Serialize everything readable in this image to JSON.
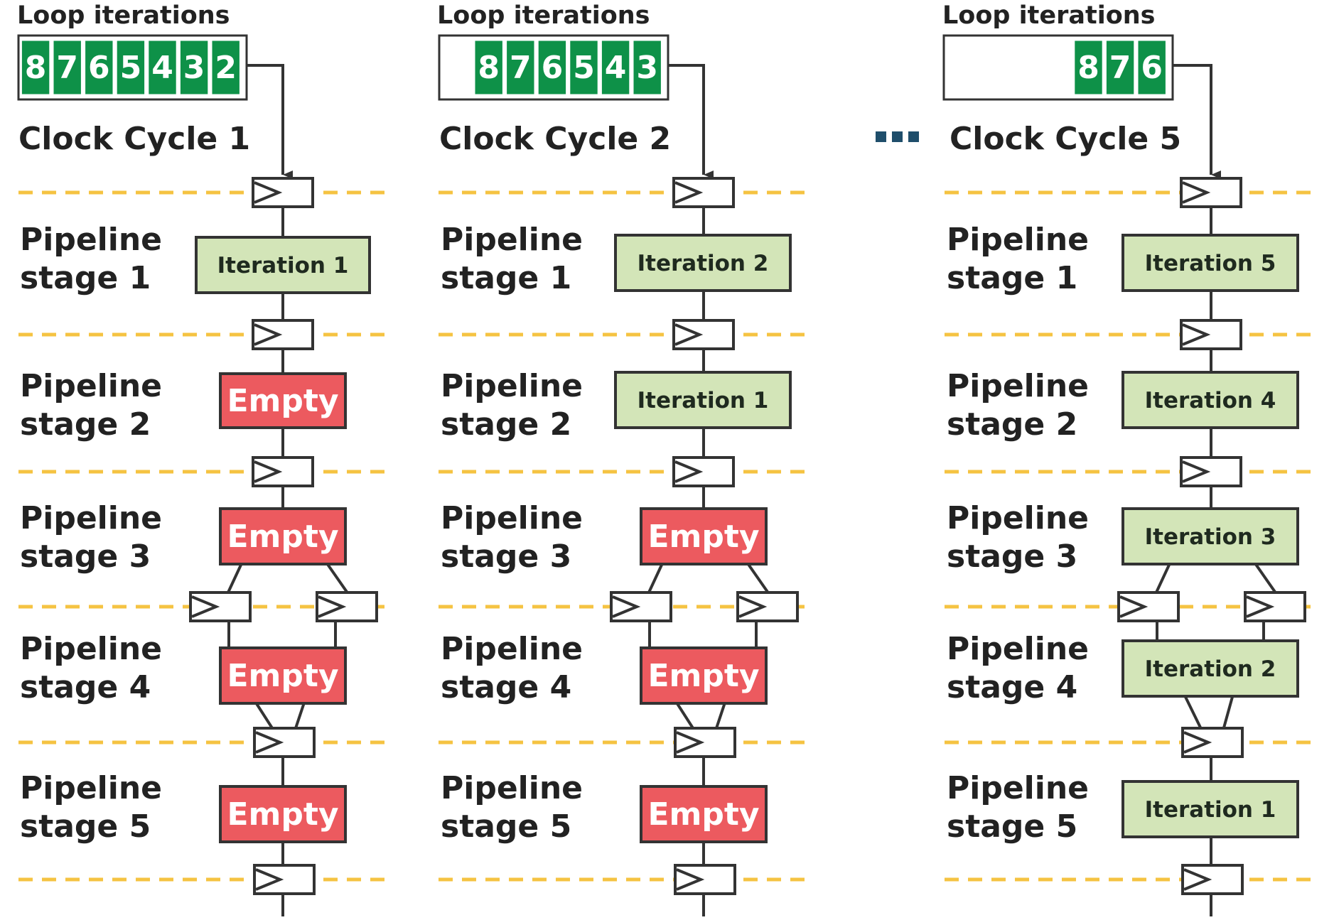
{
  "columns": [
    {
      "loop_title": "Loop iterations",
      "iterations": [
        "8",
        "7",
        "6",
        "5",
        "4",
        "3",
        "2"
      ],
      "cycle_title": "Clock Cycle 1",
      "stage_labels": [
        [
          "Pipeline",
          "stage 1"
        ],
        [
          "Pipeline",
          "stage 2"
        ],
        [
          "Pipeline",
          "stage 3"
        ],
        [
          "Pipeline",
          "stage 4"
        ],
        [
          "Pipeline",
          "stage 5"
        ]
      ],
      "stage_states": [
        {
          "kind": "iteration",
          "text": "Iteration 1"
        },
        {
          "kind": "empty",
          "text": "Empty"
        },
        {
          "kind": "empty",
          "text": "Empty"
        },
        {
          "kind": "empty",
          "text": "Empty"
        },
        {
          "kind": "empty",
          "text": "Empty"
        }
      ]
    },
    {
      "loop_title": "Loop iterations",
      "iterations": [
        "8",
        "7",
        "6",
        "5",
        "4",
        "3"
      ],
      "cycle_title": "Clock Cycle 2",
      "stage_labels": [
        [
          "Pipeline",
          "stage 1"
        ],
        [
          "Pipeline",
          "stage 2"
        ],
        [
          "Pipeline",
          "stage 3"
        ],
        [
          "Pipeline",
          "stage 4"
        ],
        [
          "Pipeline",
          "stage 5"
        ]
      ],
      "stage_states": [
        {
          "kind": "iteration",
          "text": "Iteration 2"
        },
        {
          "kind": "iteration",
          "text": "Iteration 1"
        },
        {
          "kind": "empty",
          "text": "Empty"
        },
        {
          "kind": "empty",
          "text": "Empty"
        },
        {
          "kind": "empty",
          "text": "Empty"
        }
      ]
    },
    {
      "loop_title": "Loop iterations",
      "iterations": [
        "8",
        "7",
        "6"
      ],
      "cycle_title": "Clock Cycle 5",
      "stage_labels": [
        [
          "Pipeline",
          "stage 1"
        ],
        [
          "Pipeline",
          "stage 2"
        ],
        [
          "Pipeline",
          "stage 3"
        ],
        [
          "Pipeline",
          "stage 4"
        ],
        [
          "Pipeline",
          "stage 5"
        ]
      ],
      "stage_states": [
        {
          "kind": "iteration",
          "text": "Iteration 5"
        },
        {
          "kind": "iteration",
          "text": "Iteration 4"
        },
        {
          "kind": "iteration",
          "text": "Iteration 3"
        },
        {
          "kind": "iteration",
          "text": "Iteration 2"
        },
        {
          "kind": "iteration",
          "text": "Iteration 1"
        }
      ]
    }
  ],
  "colors": {
    "iteration_fill": "#d3e5b8",
    "empty_fill": "#ec5a5f",
    "queue_green": "#0e9148",
    "dash_yellow": "#f5c342",
    "ellipsis": "#1f4e6b",
    "line": "#333333"
  },
  "icons": {
    "register": "register-clock-icon",
    "ellipsis": "ellipsis-icon"
  }
}
